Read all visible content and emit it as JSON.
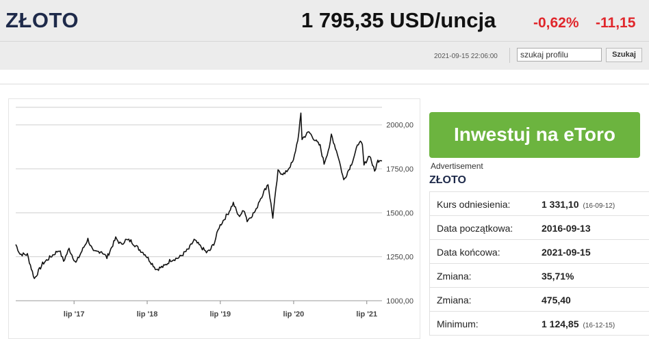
{
  "header": {
    "title": "ZŁOTO",
    "price": "1 795,35 USD/uncja",
    "change_pct": "-0,62%",
    "change_abs": "-11,15",
    "timestamp": "2021-09-15 22:06:00",
    "search_value": "szukaj profilu",
    "search_button": "Szukaj"
  },
  "ad": {
    "button": "Inwestuj na eToro",
    "label": "Advertisement"
  },
  "info": {
    "title": "ZŁOTO",
    "rows": [
      {
        "label": "Kurs odniesienia:",
        "value": "1 331,10",
        "note": "(16-09-12)"
      },
      {
        "label": "Data początkowa:",
        "value": "2016-09-13",
        "note": ""
      },
      {
        "label": "Data końcowa:",
        "value": "2021-09-15",
        "note": ""
      },
      {
        "label": "Zmiana:",
        "value": "35,71%",
        "note": ""
      },
      {
        "label": "Zmiana:",
        "value": "475,40",
        "note": ""
      },
      {
        "label": "Minimum:",
        "value": "1 124,85",
        "note": "(16-12-15)"
      }
    ]
  },
  "chart_data": {
    "type": "line",
    "title": "",
    "ylim": [
      1000,
      2100
    ],
    "y_ticks": [
      "2000,00",
      "1750,00",
      "1500,00",
      "1250,00",
      "1000,00"
    ],
    "y_tick_values": [
      2000,
      1750,
      1500,
      1250,
      1000
    ],
    "x_ticks": [
      "lip '17",
      "lip '18",
      "lip '19",
      "lip '20",
      "lip '21"
    ],
    "x_tick_dates": [
      "2017-07-01",
      "2018-07-01",
      "2019-07-01",
      "2020-07-01",
      "2021-07-01"
    ],
    "grid": true,
    "series": [
      {
        "x": [
          "2016-09-13",
          "2016-10-05",
          "2016-11-10",
          "2016-12-15",
          "2017-01-25",
          "2017-03-01",
          "2017-04-18",
          "2017-05-10",
          "2017-06-06",
          "2017-07-10",
          "2017-09-08",
          "2017-10-06",
          "2017-11-15",
          "2017-12-12",
          "2018-01-25",
          "2018-02-20",
          "2018-03-15",
          "2018-04-11",
          "2018-05-20",
          "2018-06-20",
          "2018-08-16",
          "2018-09-27",
          "2018-10-26",
          "2018-12-07",
          "2019-01-25",
          "2019-02-20",
          "2019-04-23",
          "2019-05-10",
          "2019-06-03",
          "2019-06-25",
          "2019-08-10",
          "2019-09-04",
          "2019-09-30",
          "2019-10-30",
          "2019-11-12",
          "2019-12-27",
          "2020-01-08",
          "2020-02-24",
          "2020-03-19",
          "2020-04-14",
          "2020-05-18",
          "2020-06-30",
          "2020-07-27",
          "2020-08-06",
          "2020-08-12",
          "2020-09-15",
          "2020-10-22",
          "2020-11-10",
          "2020-11-30",
          "2020-12-31",
          "2021-01-05",
          "2021-02-10",
          "2021-03-08",
          "2021-04-16",
          "2021-05-25",
          "2021-06-09",
          "2021-06-17",
          "2021-07-15",
          "2021-08-09",
          "2021-08-25",
          "2021-09-07",
          "2021-09-15"
        ],
        "y": [
          1320,
          1265,
          1262,
          1125,
          1210,
          1245,
          1290,
          1225,
          1295,
          1215,
          1350,
          1275,
          1282,
          1245,
          1355,
          1320,
          1345,
          1340,
          1295,
          1265,
          1178,
          1198,
          1232,
          1245,
          1295,
          1345,
          1275,
          1285,
          1335,
          1420,
          1500,
          1555,
          1480,
          1515,
          1455,
          1515,
          1560,
          1665,
          1475,
          1735,
          1720,
          1795,
          1950,
          2065,
          1920,
          1960,
          1905,
          1880,
          1780,
          1895,
          1945,
          1815,
          1685,
          1780,
          1910,
          1880,
          1770,
          1830,
          1735,
          1795,
          1805,
          1795
        ]
      }
    ]
  }
}
